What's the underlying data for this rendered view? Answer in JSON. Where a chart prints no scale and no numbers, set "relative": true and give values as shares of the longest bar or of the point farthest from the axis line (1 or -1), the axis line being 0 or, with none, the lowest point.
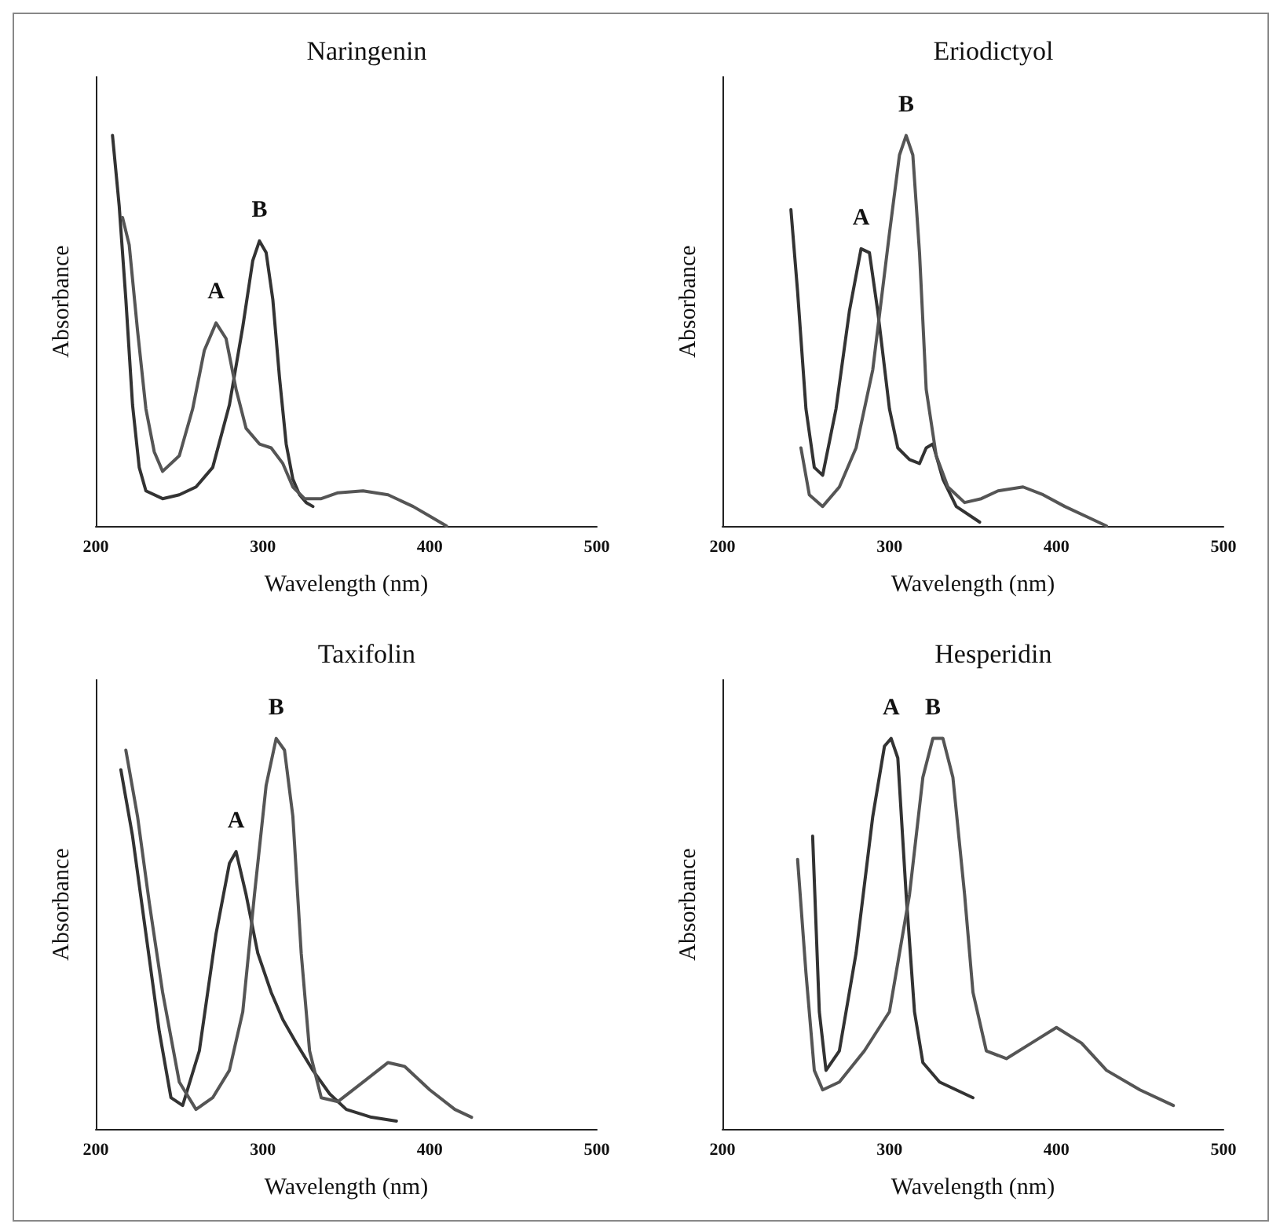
{
  "chart_data": [
    {
      "type": "line",
      "title": "Naringenin",
      "xlabel": "Wavelength (nm)",
      "ylabel": "Absorbance",
      "relative": true,
      "xlim": [
        200,
        500
      ],
      "xticks": [
        200,
        300,
        400,
        500
      ],
      "tick_labels": "x",
      "grid": false,
      "series": [
        {
          "color": "#333333",
          "x": [
            210,
            214,
            218,
            222,
            226,
            230,
            240,
            250,
            260,
            270,
            280,
            288,
            294,
            298,
            302,
            306,
            310,
            314,
            318,
            322,
            326,
            330
          ],
          "values": [
            1,
            0.82,
            0.58,
            0.31,
            0.15,
            0.09,
            0.07,
            0.08,
            0.1,
            0.15,
            0.31,
            0.51,
            0.68,
            0.73,
            0.7,
            0.58,
            0.38,
            0.21,
            0.12,
            0.08,
            0.06,
            0.05
          ]
        },
        {
          "color": "#555555",
          "x": [
            216,
            220,
            225,
            230,
            235,
            240,
            250,
            258,
            265,
            272,
            278,
            284,
            290,
            298,
            305,
            312,
            318,
            325,
            335,
            345,
            360,
            375,
            390,
            400,
            410
          ],
          "values": [
            0.79,
            0.72,
            0.5,
            0.3,
            0.19,
            0.14,
            0.18,
            0.3,
            0.45,
            0.52,
            0.48,
            0.35,
            0.25,
            0.21,
            0.2,
            0.16,
            0.1,
            0.07,
            0.07,
            0.085,
            0.09,
            0.08,
            0.05,
            0.025,
            0
          ]
        }
      ],
      "annotations": [
        {
          "text": "A",
          "x": 272,
          "y": 0.52
        },
        {
          "text": "B",
          "x": 298,
          "y": 0.73
        }
      ]
    },
    {
      "type": "line",
      "title": "Eriodictyol",
      "xlabel": "Wavelength (nm)",
      "ylabel": "Absorbance",
      "relative": true,
      "xlim": [
        200,
        500
      ],
      "xticks": [
        200,
        300,
        400,
        500
      ],
      "tick_labels": "x",
      "grid": false,
      "series": [
        {
          "color": "#333333",
          "x": [
            241,
            245,
            250,
            255,
            260,
            268,
            276,
            283,
            288,
            293,
            300,
            305,
            312,
            318,
            322,
            326,
            332,
            340,
            354
          ],
          "values": [
            0.81,
            0.6,
            0.3,
            0.15,
            0.13,
            0.3,
            0.55,
            0.71,
            0.7,
            0.55,
            0.3,
            0.2,
            0.17,
            0.16,
            0.2,
            0.21,
            0.12,
            0.05,
            0.01
          ]
        },
        {
          "color": "#555555",
          "x": [
            247,
            252,
            260,
            270,
            280,
            290,
            300,
            306,
            310,
            314,
            318,
            322,
            328,
            335,
            345,
            355,
            365,
            380,
            392,
            405,
            420,
            430
          ],
          "values": [
            0.2,
            0.08,
            0.05,
            0.1,
            0.2,
            0.4,
            0.75,
            0.95,
            1,
            0.95,
            0.7,
            0.35,
            0.18,
            0.1,
            0.06,
            0.07,
            0.09,
            0.1,
            0.08,
            0.05,
            0.02,
            0
          ]
        }
      ],
      "annotations": [
        {
          "text": "A",
          "x": 283,
          "y": 0.71
        },
        {
          "text": "B",
          "x": 310,
          "y": 1
        }
      ]
    },
    {
      "type": "line",
      "title": "Taxifolin",
      "xlabel": "Wavelength (nm)",
      "ylabel": "Absorbance",
      "relative": true,
      "xlim": [
        200,
        500
      ],
      "xticks": [
        200,
        300,
        400,
        500
      ],
      "tick_labels": "x",
      "grid": false,
      "series": [
        {
          "color": "#333333",
          "x": [
            215,
            222,
            230,
            238,
            245,
            252,
            262,
            272,
            280,
            284,
            290,
            297,
            305,
            312,
            320,
            330,
            340,
            350,
            365,
            380
          ],
          "values": [
            0.92,
            0.75,
            0.5,
            0.25,
            0.08,
            0.06,
            0.2,
            0.5,
            0.68,
            0.71,
            0.6,
            0.45,
            0.35,
            0.28,
            0.22,
            0.15,
            0.09,
            0.05,
            0.03,
            0.02
          ]
        },
        {
          "color": "#555555",
          "x": [
            218,
            225,
            232,
            240,
            250,
            260,
            270,
            280,
            288,
            295,
            302,
            308,
            313,
            318,
            323,
            328,
            335,
            345,
            360,
            375,
            385,
            400,
            415,
            425
          ],
          "values": [
            0.97,
            0.8,
            0.58,
            0.35,
            0.12,
            0.05,
            0.08,
            0.15,
            0.3,
            0.6,
            0.88,
            1,
            0.97,
            0.8,
            0.45,
            0.2,
            0.08,
            0.07,
            0.12,
            0.17,
            0.16,
            0.1,
            0.05,
            0.03
          ]
        }
      ],
      "annotations": [
        {
          "text": "A",
          "x": 284,
          "y": 0.71
        },
        {
          "text": "B",
          "x": 308,
          "y": 1
        }
      ]
    },
    {
      "type": "line",
      "title": "Hesperidin",
      "xlabel": "Wavelength (nm)",
      "ylabel": "Absorbance",
      "relative": true,
      "xlim": [
        200,
        500
      ],
      "xticks": [
        200,
        300,
        400,
        500
      ],
      "tick_labels": "x",
      "grid": false,
      "series": [
        {
          "color": "#333333",
          "x": [
            254,
            258,
            262,
            270,
            280,
            290,
            297,
            301,
            305,
            310,
            315,
            320,
            330,
            340,
            350
          ],
          "values": [
            0.75,
            0.3,
            0.15,
            0.2,
            0.45,
            0.8,
            0.98,
            1,
            0.95,
            0.6,
            0.3,
            0.17,
            0.12,
            0.1,
            0.08
          ]
        },
        {
          "color": "#555555",
          "x": [
            245,
            250,
            255,
            260,
            270,
            285,
            300,
            312,
            320,
            326,
            332,
            338,
            345,
            350,
            358,
            370,
            385,
            400,
            415,
            430,
            450,
            470
          ],
          "values": [
            0.69,
            0.4,
            0.15,
            0.1,
            0.12,
            0.2,
            0.3,
            0.6,
            0.9,
            1,
            1,
            0.9,
            0.6,
            0.35,
            0.2,
            0.18,
            0.22,
            0.26,
            0.22,
            0.15,
            0.1,
            0.06
          ]
        }
      ],
      "annotations": [
        {
          "text": "A",
          "x": 301,
          "y": 1
        },
        {
          "text": "B",
          "x": 326,
          "y": 1
        }
      ]
    }
  ]
}
